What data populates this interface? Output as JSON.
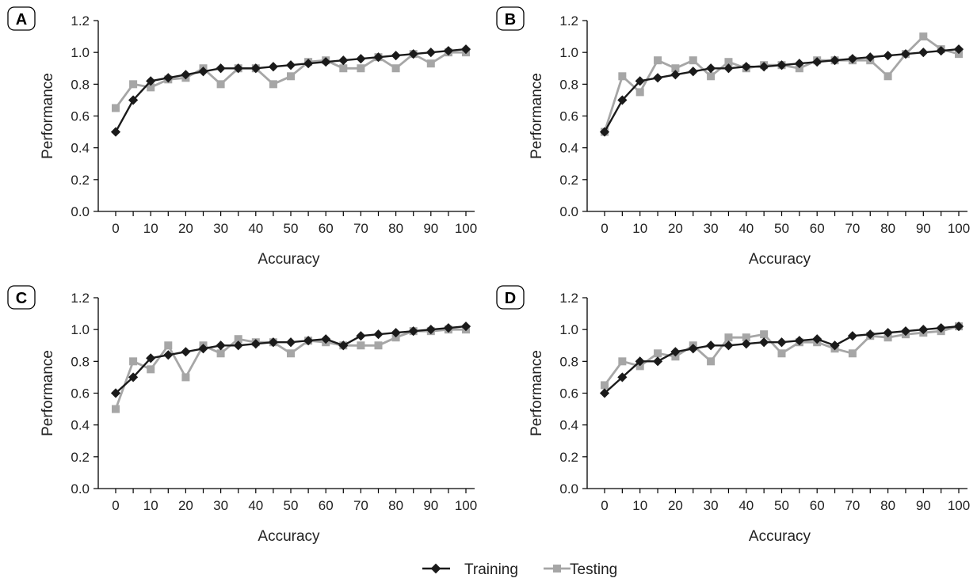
{
  "colors": {
    "training": "#1a1a1a",
    "testing": "#a6a6a6"
  },
  "legend": {
    "placement": "bottom-center",
    "items": [
      "Training",
      "Testing"
    ]
  },
  "chart_data": [
    {
      "type": "line",
      "panel": "A",
      "xlabel": "Accuracy",
      "ylabel": "Performance",
      "xlim": [
        0,
        100
      ],
      "ylim": [
        0,
        1.2
      ],
      "xticks": [
        "0",
        "10",
        "20",
        "30",
        "40",
        "50",
        "60",
        "70",
        "80",
        "90",
        "100"
      ],
      "yticks": [
        "0.0",
        "0.2",
        "0.4",
        "0.6",
        "0.8",
        "1.0",
        "1.2"
      ],
      "x": [
        0,
        5,
        10,
        15,
        20,
        25,
        30,
        35,
        40,
        45,
        50,
        55,
        60,
        65,
        70,
        75,
        80,
        85,
        90,
        95,
        100
      ],
      "series": [
        {
          "name": "Training",
          "marker": "diamond",
          "values": [
            0.5,
            0.7,
            0.82,
            0.84,
            0.86,
            0.88,
            0.9,
            0.9,
            0.9,
            0.91,
            0.92,
            0.93,
            0.94,
            0.95,
            0.96,
            0.97,
            0.98,
            0.99,
            1.0,
            1.01,
            1.02
          ]
        },
        {
          "name": "Testing",
          "marker": "square",
          "values": [
            0.65,
            0.8,
            0.78,
            0.83,
            0.84,
            0.9,
            0.8,
            0.9,
            0.9,
            0.8,
            0.85,
            0.94,
            0.95,
            0.9,
            0.9,
            0.97,
            0.9,
            0.99,
            0.93,
            1.0,
            1.0
          ]
        }
      ]
    },
    {
      "type": "line",
      "panel": "B",
      "xlabel": "Accuracy",
      "ylabel": "Performance",
      "xlim": [
        0,
        100
      ],
      "ylim": [
        0,
        1.2
      ],
      "xticks": [
        "0",
        "10",
        "20",
        "30",
        "40",
        "50",
        "60",
        "70",
        "80",
        "90",
        "100"
      ],
      "yticks": [
        "0.0",
        "0.2",
        "0.4",
        "0.6",
        "0.8",
        "1.0",
        "1.2"
      ],
      "x": [
        0,
        5,
        10,
        15,
        20,
        25,
        30,
        35,
        40,
        45,
        50,
        55,
        60,
        65,
        70,
        75,
        80,
        85,
        90,
        95,
        100
      ],
      "series": [
        {
          "name": "Training",
          "marker": "diamond",
          "values": [
            0.5,
            0.7,
            0.82,
            0.84,
            0.86,
            0.88,
            0.9,
            0.9,
            0.91,
            0.91,
            0.92,
            0.93,
            0.94,
            0.95,
            0.96,
            0.97,
            0.98,
            0.99,
            1.0,
            1.01,
            1.02
          ]
        },
        {
          "name": "Testing",
          "marker": "square",
          "values": [
            0.5,
            0.85,
            0.75,
            0.95,
            0.9,
            0.95,
            0.85,
            0.94,
            0.9,
            0.92,
            0.92,
            0.9,
            0.95,
            0.95,
            0.95,
            0.95,
            0.85,
            0.99,
            1.1,
            1.02,
            0.99
          ]
        }
      ]
    },
    {
      "type": "line",
      "panel": "C",
      "xlabel": "Accuracy",
      "ylabel": "Performance",
      "xlim": [
        0,
        100
      ],
      "ylim": [
        0,
        1.2
      ],
      "xticks": [
        "0",
        "10",
        "20",
        "30",
        "40",
        "50",
        "60",
        "70",
        "80",
        "90",
        "100"
      ],
      "yticks": [
        "0.0",
        "0.2",
        "0.4",
        "0.6",
        "0.8",
        "1.0",
        "1.2"
      ],
      "x": [
        0,
        5,
        10,
        15,
        20,
        25,
        30,
        35,
        40,
        45,
        50,
        55,
        60,
        65,
        70,
        75,
        80,
        85,
        90,
        95,
        100
      ],
      "series": [
        {
          "name": "Training",
          "marker": "diamond",
          "values": [
            0.6,
            0.7,
            0.82,
            0.84,
            0.86,
            0.88,
            0.9,
            0.9,
            0.91,
            0.92,
            0.92,
            0.93,
            0.94,
            0.9,
            0.96,
            0.97,
            0.98,
            0.99,
            1.0,
            1.01,
            1.02
          ]
        },
        {
          "name": "Testing",
          "marker": "square",
          "values": [
            0.5,
            0.8,
            0.75,
            0.9,
            0.7,
            0.9,
            0.85,
            0.94,
            0.92,
            0.92,
            0.85,
            0.93,
            0.92,
            0.9,
            0.9,
            0.9,
            0.95,
            0.99,
            0.99,
            1.0,
            1.0
          ]
        }
      ]
    },
    {
      "type": "line",
      "panel": "D",
      "xlabel": "Accuracy",
      "ylabel": "Performance",
      "xlim": [
        0,
        100
      ],
      "ylim": [
        0,
        1.2
      ],
      "xticks": [
        "0",
        "10",
        "20",
        "30",
        "40",
        "50",
        "60",
        "70",
        "80",
        "90",
        "100"
      ],
      "yticks": [
        "0.0",
        "0.2",
        "0.4",
        "0.6",
        "0.8",
        "1.0",
        "1.2"
      ],
      "x": [
        0,
        5,
        10,
        15,
        20,
        25,
        30,
        35,
        40,
        45,
        50,
        55,
        60,
        65,
        70,
        75,
        80,
        85,
        90,
        95,
        100
      ],
      "series": [
        {
          "name": "Training",
          "marker": "diamond",
          "values": [
            0.6,
            0.7,
            0.8,
            0.8,
            0.86,
            0.88,
            0.9,
            0.9,
            0.91,
            0.92,
            0.92,
            0.93,
            0.94,
            0.9,
            0.96,
            0.97,
            0.98,
            0.99,
            1.0,
            1.01,
            1.02
          ]
        },
        {
          "name": "Testing",
          "marker": "square",
          "values": [
            0.65,
            0.8,
            0.77,
            0.85,
            0.83,
            0.9,
            0.8,
            0.95,
            0.95,
            0.97,
            0.85,
            0.92,
            0.92,
            0.88,
            0.85,
            0.96,
            0.95,
            0.97,
            0.98,
            0.99,
            1.02
          ]
        }
      ]
    }
  ]
}
